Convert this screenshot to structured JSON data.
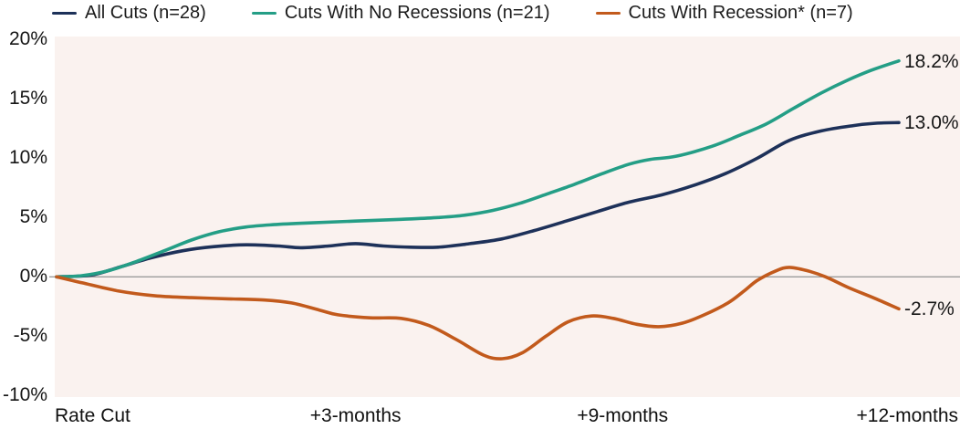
{
  "chart_data": {
    "type": "line",
    "title": "",
    "xlabel": "",
    "ylabel": "",
    "ylim": [
      -10,
      20
    ],
    "grid": false,
    "plot_bg_color": "#faf2ef",
    "zero_line_color": "#9b9b9b",
    "legend_position": "top",
    "y_ticks": [
      {
        "label": "20%",
        "value": 20
      },
      {
        "label": "15%",
        "value": 15
      },
      {
        "label": "10%",
        "value": 10
      },
      {
        "label": "5%",
        "value": 5
      },
      {
        "label": "0%",
        "value": 0
      },
      {
        "label": "-5%",
        "value": -5
      },
      {
        "label": "-10%",
        "value": -10
      }
    ],
    "x_labels": [
      {
        "text": "Rate Cut",
        "pos": 0,
        "align": "left"
      },
      {
        "text": "+3-months",
        "pos": 35.5,
        "align": "center"
      },
      {
        "text": "+9-months",
        "pos": 67.2,
        "align": "center"
      },
      {
        "text": "+12-months",
        "pos": 100,
        "align": "right"
      }
    ],
    "series": [
      {
        "name": "All Cuts (n=28)",
        "color": "#1d3159",
        "end_label": "13.0%",
        "points": [
          [
            0,
            0
          ],
          [
            4.1,
            0.15
          ],
          [
            7.4,
            0.8
          ],
          [
            11.2,
            1.6
          ],
          [
            15,
            2.2
          ],
          [
            18.7,
            2.55
          ],
          [
            22.5,
            2.7
          ],
          [
            26.3,
            2.6
          ],
          [
            29,
            2.45
          ],
          [
            32.3,
            2.6
          ],
          [
            35.5,
            2.8
          ],
          [
            38.8,
            2.6
          ],
          [
            42,
            2.5
          ],
          [
            45.3,
            2.5
          ],
          [
            49.1,
            2.8
          ],
          [
            52.9,
            3.2
          ],
          [
            56.7,
            3.9
          ],
          [
            60.5,
            4.7
          ],
          [
            64.2,
            5.5
          ],
          [
            68,
            6.3
          ],
          [
            71.8,
            6.9
          ],
          [
            75.6,
            7.7
          ],
          [
            79.4,
            8.7
          ],
          [
            83.2,
            10.0
          ],
          [
            87,
            11.5
          ],
          [
            90.8,
            12.3
          ],
          [
            94.6,
            12.75
          ],
          [
            97.3,
            12.95
          ],
          [
            100,
            13.0
          ]
        ]
      },
      {
        "name": "Cuts With No Recessions (n=21)",
        "color": "#249e86",
        "end_label": "18.2%",
        "points": [
          [
            0,
            0
          ],
          [
            3,
            0.1
          ],
          [
            6.3,
            0.55
          ],
          [
            9.5,
            1.3
          ],
          [
            12.8,
            2.2
          ],
          [
            16,
            3.1
          ],
          [
            19.3,
            3.8
          ],
          [
            22.5,
            4.2
          ],
          [
            25.8,
            4.4
          ],
          [
            30.1,
            4.55
          ],
          [
            35.5,
            4.7
          ],
          [
            40.9,
            4.85
          ],
          [
            45.3,
            5.0
          ],
          [
            48.5,
            5.2
          ],
          [
            51.8,
            5.6
          ],
          [
            55,
            6.2
          ],
          [
            58.3,
            7.0
          ],
          [
            61.5,
            7.8
          ],
          [
            64.8,
            8.7
          ],
          [
            68,
            9.5
          ],
          [
            70.5,
            9.9
          ],
          [
            73.5,
            10.15
          ],
          [
            77.8,
            11.0
          ],
          [
            81,
            11.9
          ],
          [
            84.3,
            12.9
          ],
          [
            87.5,
            14.2
          ],
          [
            90.8,
            15.5
          ],
          [
            94,
            16.6
          ],
          [
            96.7,
            17.4
          ],
          [
            100,
            18.2
          ]
        ]
      },
      {
        "name": "Cuts With Recession* (n=7)",
        "color": "#c25a1c",
        "end_label": "-2.7%",
        "points": [
          [
            0,
            0
          ],
          [
            3,
            -0.5
          ],
          [
            7.4,
            -1.2
          ],
          [
            11.7,
            -1.6
          ],
          [
            16,
            -1.75
          ],
          [
            20.4,
            -1.85
          ],
          [
            24.7,
            -1.95
          ],
          [
            27.9,
            -2.2
          ],
          [
            31.2,
            -2.8
          ],
          [
            33.4,
            -3.2
          ],
          [
            37.2,
            -3.45
          ],
          [
            40.9,
            -3.5
          ],
          [
            44.2,
            -4.1
          ],
          [
            47.5,
            -5.3
          ],
          [
            50.7,
            -6.6
          ],
          [
            52.9,
            -6.9
          ],
          [
            55.3,
            -6.4
          ],
          [
            58.1,
            -5.0
          ],
          [
            60.7,
            -3.8
          ],
          [
            63.5,
            -3.3
          ],
          [
            66.1,
            -3.5
          ],
          [
            68.9,
            -4.0
          ],
          [
            71.5,
            -4.2
          ],
          [
            74.3,
            -3.9
          ],
          [
            76.9,
            -3.2
          ],
          [
            79.7,
            -2.2
          ],
          [
            81.6,
            -1.2
          ],
          [
            83.2,
            -0.3
          ],
          [
            85.4,
            0.5
          ],
          [
            87,
            0.8
          ],
          [
            89.2,
            0.5
          ],
          [
            91.3,
            0.0
          ],
          [
            94,
            -0.9
          ],
          [
            97.1,
            -1.8
          ],
          [
            100,
            -2.7
          ]
        ]
      }
    ]
  }
}
